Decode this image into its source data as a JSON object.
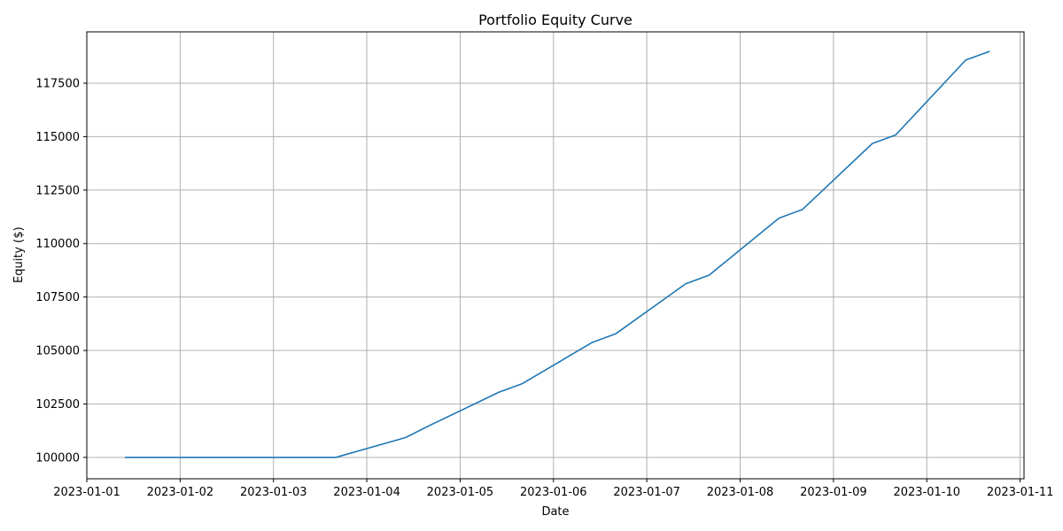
{
  "chart_data": {
    "type": "line",
    "title": "Portfolio Equity Curve",
    "xlabel": "Date",
    "ylabel": "Equity ($)",
    "grid": true,
    "xlim": [
      "2023-01-01 00:00",
      "2023-01-11 01:00"
    ],
    "ylim": [
      99000,
      119900
    ],
    "x_ticks": [
      "2023-01-01",
      "2023-01-02",
      "2023-01-03",
      "2023-01-04",
      "2023-01-05",
      "2023-01-06",
      "2023-01-07",
      "2023-01-08",
      "2023-01-09",
      "2023-01-10",
      "2023-01-11"
    ],
    "y_ticks": [
      "100000",
      "102500",
      "105000",
      "107500",
      "110000",
      "112500",
      "115000",
      "117500"
    ],
    "series": [
      {
        "color": "#1f77b4",
        "x": [
          "2023-01-01 10:00",
          "2023-01-01 16:00",
          "2023-01-02 10:00",
          "2023-01-02 16:00",
          "2023-01-03 10:00",
          "2023-01-03 16:00",
          "2023-01-04 10:00",
          "2023-01-04 16:00",
          "2023-01-05 10:00",
          "2023-01-05 16:00",
          "2023-01-06 10:00",
          "2023-01-06 16:00",
          "2023-01-07 10:00",
          "2023-01-07 16:00",
          "2023-01-08 10:00",
          "2023-01-08 16:00",
          "2023-01-09 10:00",
          "2023-01-09 16:00",
          "2023-01-10 10:00",
          "2023-01-10 16:00"
        ],
        "values": [
          100000,
          100000,
          100000,
          100000,
          100000,
          100000,
          100930,
          101480,
          103050,
          103450,
          105380,
          105780,
          108120,
          108520,
          111190,
          111590,
          114680,
          115080,
          118580,
          118980
        ]
      }
    ]
  }
}
